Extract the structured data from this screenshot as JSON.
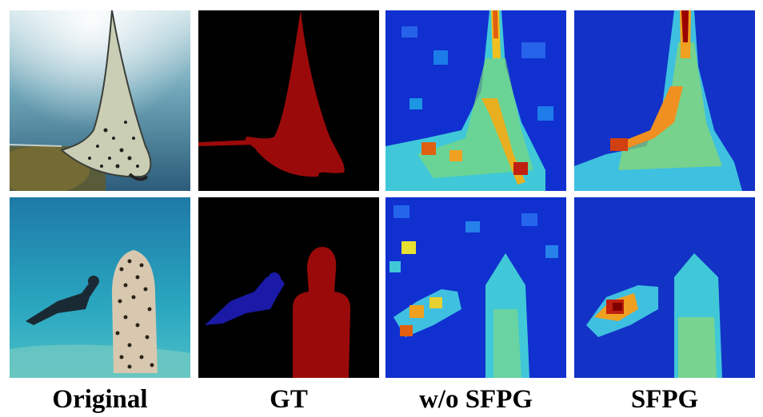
{
  "figure": {
    "columns": [
      {
        "label": "Original"
      },
      {
        "label": "GT"
      },
      {
        "label": "w/o SFPG"
      },
      {
        "label": "SFPG"
      }
    ],
    "rows": [
      {
        "subject": "manta ray"
      },
      {
        "subject": "diver and statue"
      }
    ]
  },
  "colors": {
    "background": "#ffffff",
    "mask_background": "#000000",
    "mask_red": "#9b0a0a",
    "mask_blue": "#1a1aa6",
    "heat_low": "#0a20c8",
    "heat_mid": "#3ad0e0",
    "heat_high": "#f2a020",
    "heat_peak": "#8c0000"
  }
}
